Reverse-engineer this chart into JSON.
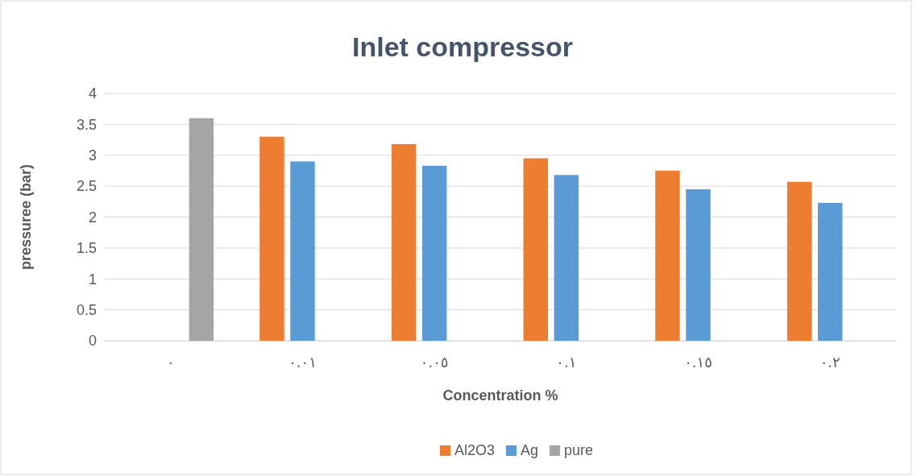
{
  "chart_data": {
    "type": "bar",
    "title": "Inlet compressor",
    "xlabel": "Concentration %",
    "ylabel": "pressuree (bar)",
    "categories": [
      "٠",
      "٠.٠١",
      "٠.٠٥",
      "٠.١",
      "٠.١٥",
      "٠.٢"
    ],
    "series": [
      {
        "name": "Al2O3",
        "color": "#ed7d31",
        "values": [
          null,
          3.3,
          3.18,
          2.95,
          2.75,
          2.57
        ]
      },
      {
        "name": "Ag",
        "color": "#5b9bd5",
        "values": [
          null,
          2.9,
          2.83,
          2.68,
          2.45,
          2.23
        ]
      },
      {
        "name": "pure",
        "color": "#a5a5a5",
        "values": [
          3.6,
          null,
          null,
          null,
          null,
          null
        ]
      }
    ],
    "ylim": [
      0,
      4
    ],
    "yticks": [
      0,
      0.5,
      1,
      1.5,
      2,
      2.5,
      3,
      3.5,
      4
    ],
    "grid": "y",
    "legend": "bottom"
  }
}
